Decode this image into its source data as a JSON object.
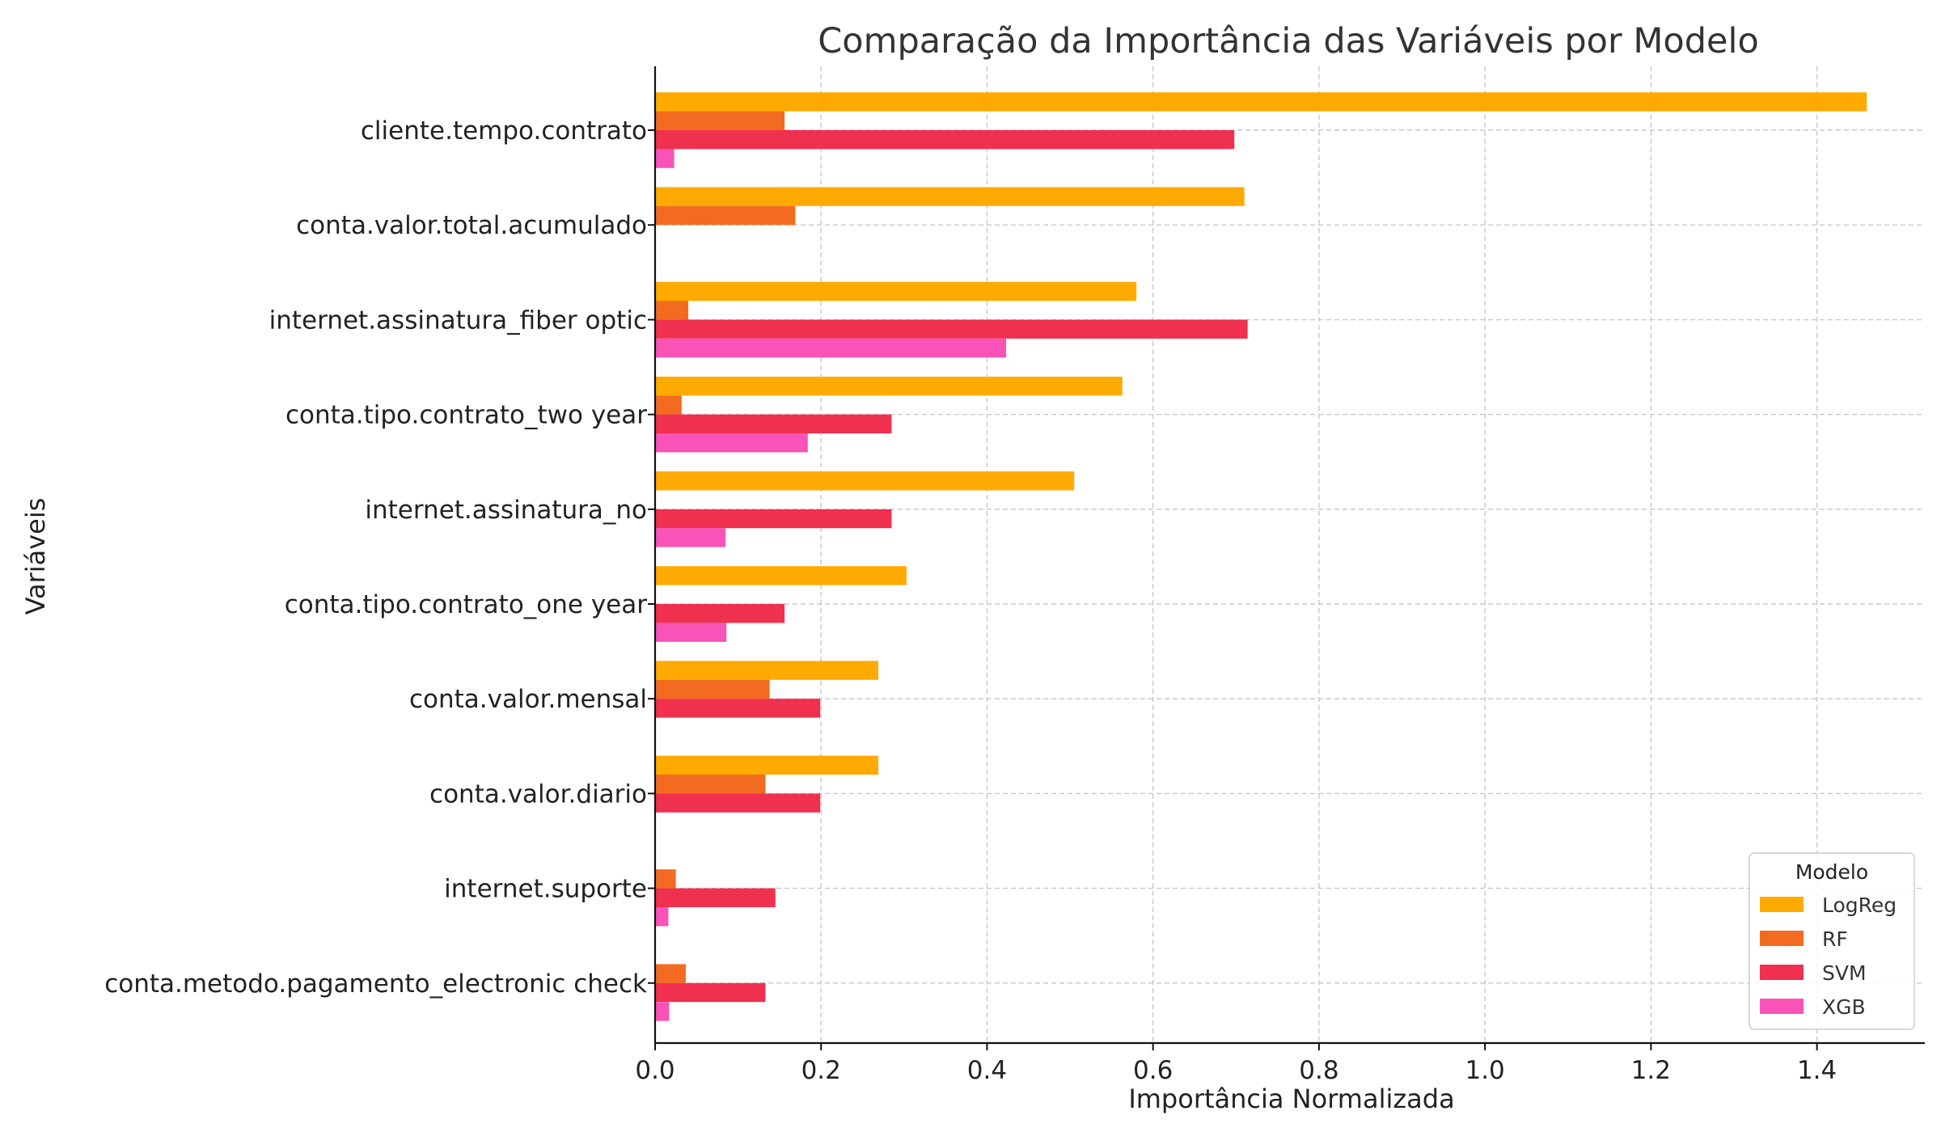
{
  "chart_data": {
    "type": "bar",
    "orientation": "horizontal",
    "title": "Comparação da Importância das Variáveis por Modelo",
    "xlabel": "Importância Normalizada",
    "ylabel": "Variáveis",
    "xlim": [
      0,
      1.53
    ],
    "xticks": [
      0.0,
      0.2,
      0.4,
      0.6,
      0.8,
      1.0,
      1.2,
      1.4
    ],
    "xtick_labels": [
      "0.0",
      "0.2",
      "0.4",
      "0.6",
      "0.8",
      "1.0",
      "1.2",
      "1.4"
    ],
    "grid": true,
    "legend_title": "Modelo",
    "legend_position": "lower-right",
    "categories": [
      "cliente.tempo.contrato",
      "conta.valor.total.acumulado",
      "internet.assinatura_fiber optic",
      "conta.tipo.contrato_two year",
      "internet.assinatura_no",
      "conta.tipo.contrato_one year",
      "conta.valor.mensal",
      "conta.valor.diario",
      "internet.suporte",
      "conta.metodo.pagamento_electronic check"
    ],
    "series": [
      {
        "name": "LogReg",
        "color": "#FFAA00",
        "values": [
          1.46,
          0.71,
          0.58,
          0.563,
          0.505,
          0.303,
          0.269,
          0.269,
          0,
          0
        ]
      },
      {
        "name": "RF",
        "color": "#F26B21",
        "values": [
          0.156,
          0.169,
          0.04,
          0.032,
          0,
          0,
          0.138,
          0.133,
          0.025,
          0.037
        ]
      },
      {
        "name": "SVM",
        "color": "#F0304F",
        "values": [
          0.698,
          0,
          0.714,
          0.285,
          0.285,
          0.156,
          0.199,
          0.199,
          0.145,
          0.133
        ]
      },
      {
        "name": "XGB",
        "color": "#F953B8",
        "values": [
          0.023,
          0,
          0.423,
          0.184,
          0.085,
          0.086,
          0,
          0,
          0.016,
          0.017
        ]
      }
    ]
  }
}
